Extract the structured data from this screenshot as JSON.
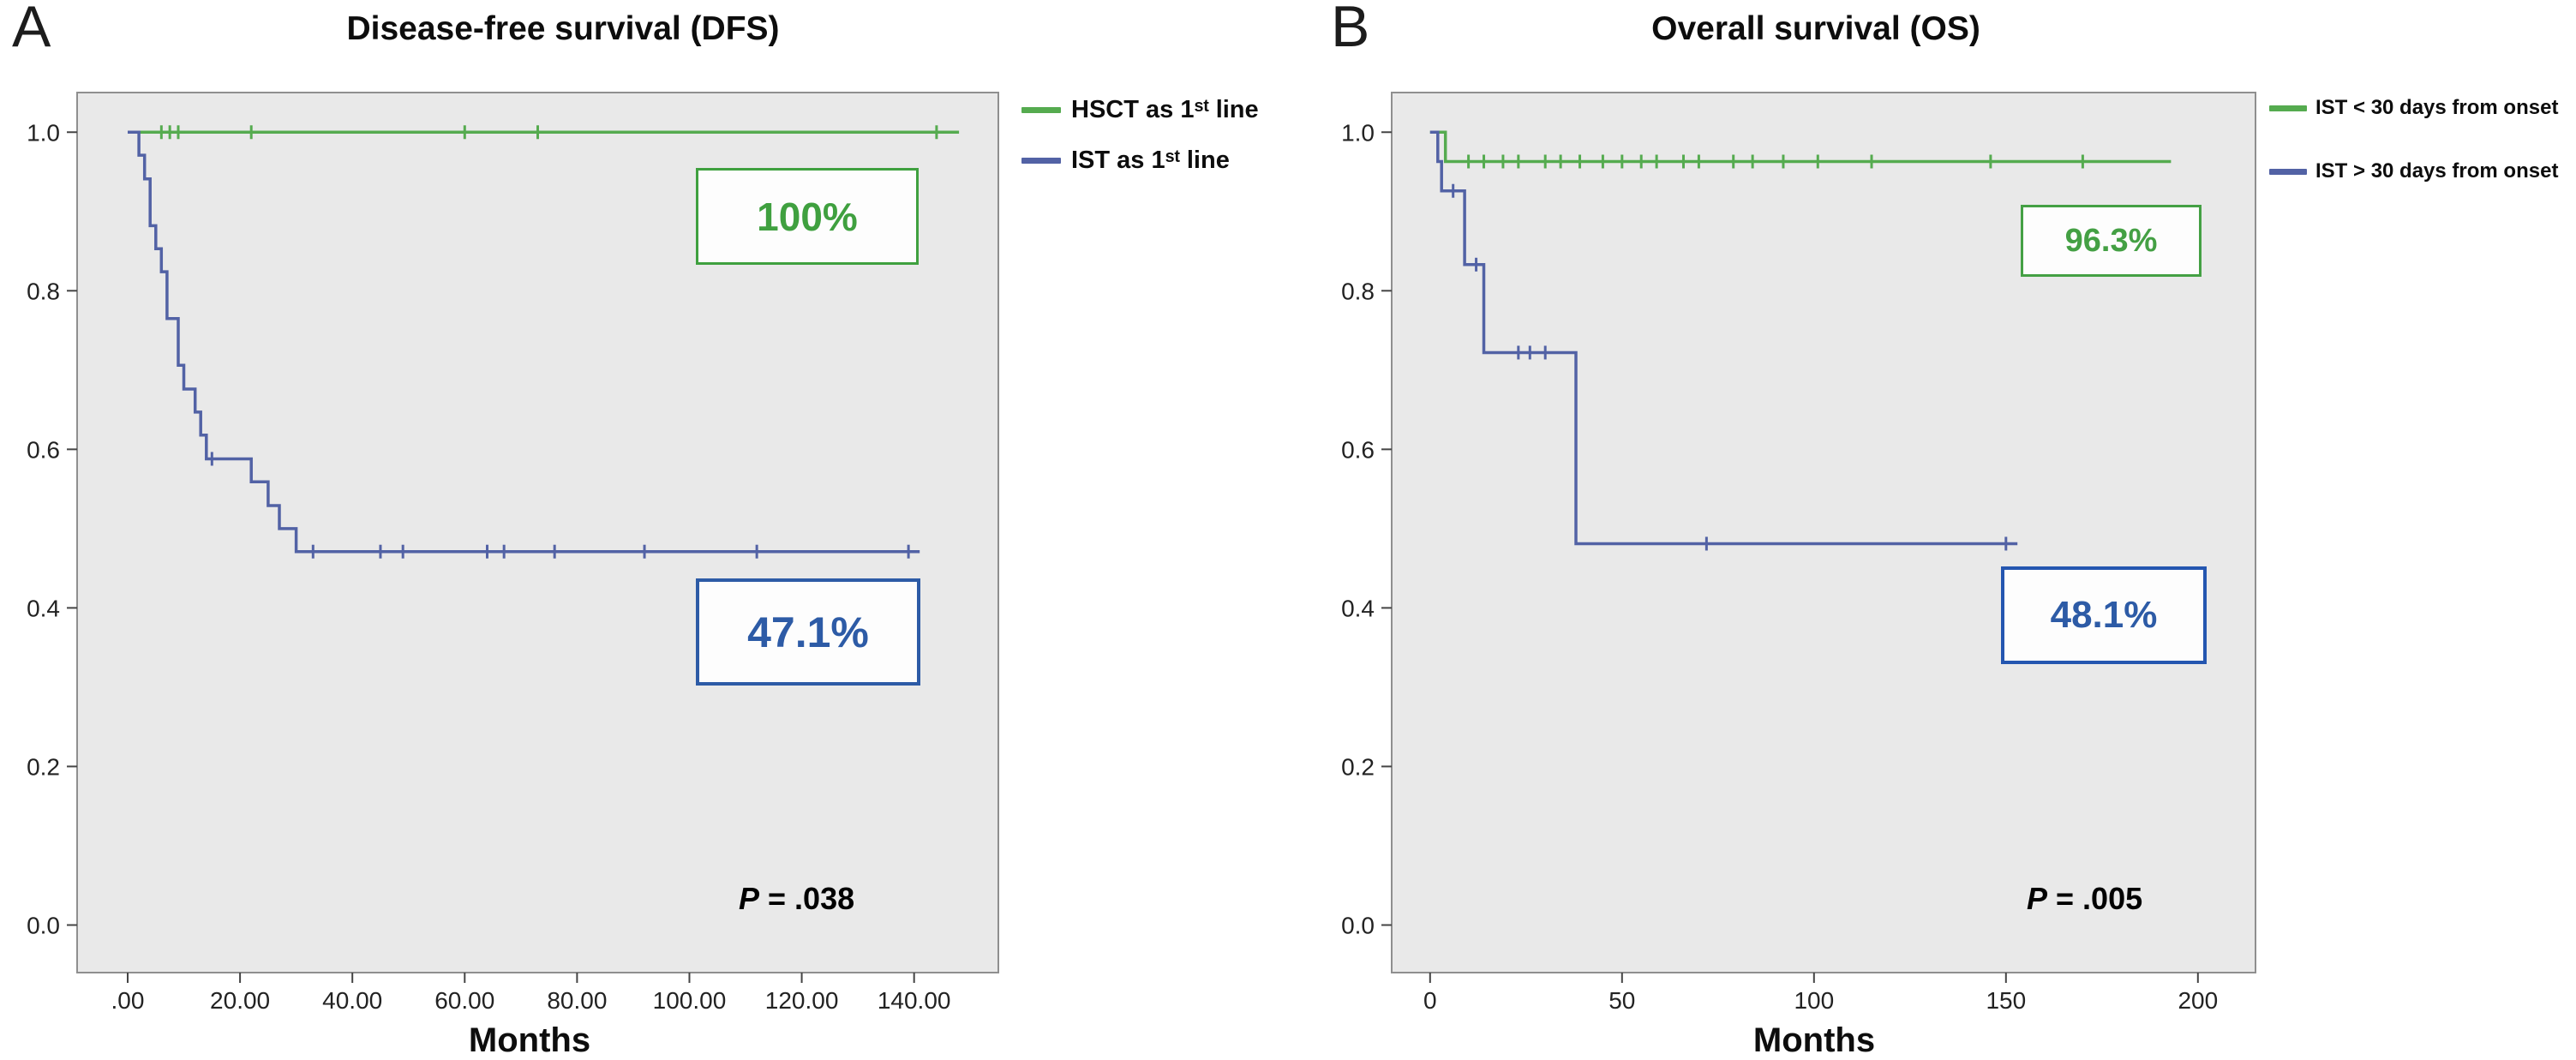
{
  "panels": [
    {
      "letter": "A",
      "title": "Disease-free survival (DFS)",
      "xlabel": "Months",
      "p_italic": "P",
      "p_rest": " = .038",
      "legend": [
        {
          "label": "HSCT as 1ˢᵗ line"
        },
        {
          "label": "IST as 1ˢᵗ line"
        }
      ],
      "annotations": [
        {
          "text": "100%",
          "color": "#3fa03f",
          "border": "#3fa03f"
        },
        {
          "text": "47.1%",
          "color": "#2d5ba6",
          "border": "#2d5ba6"
        }
      ]
    },
    {
      "letter": "B",
      "title": "Overall survival (OS)",
      "xlabel": "Months",
      "p_italic": "P",
      "p_rest": " = .005",
      "legend": [
        {
          "label": "IST < 30 days from onset"
        },
        {
          "label": "IST > 30 days from onset"
        }
      ],
      "annotations": [
        {
          "text": "96.3%",
          "color": "#44a044",
          "border": "#44a044"
        },
        {
          "text": "48.1%",
          "color": "#2d5ba6",
          "border": "#2456b0"
        }
      ]
    }
  ],
  "chart_data": [
    {
      "type": "line",
      "subtype": "kaplan-meier-step",
      "panel": "A",
      "title": "Disease-free survival (DFS)",
      "xlabel": "Months",
      "ylabel": "",
      "xlim": [
        -9,
        155
      ],
      "ylim": [
        -0.06,
        1.05
      ],
      "grid": false,
      "plot_background": "#e9e9e9",
      "legend_position": "top-right-outside",
      "p_value": "P = .038",
      "xticks": {
        "values": [
          0,
          20,
          40,
          60,
          80,
          100,
          120,
          140
        ],
        "labels": [
          ".00",
          "20.00",
          "40.00",
          "60.00",
          "80.00",
          "100.00",
          "120.00",
          "140.00"
        ]
      },
      "yticks": {
        "values": [
          0.0,
          0.2,
          0.4,
          0.6,
          0.8,
          1.0
        ],
        "labels": [
          "0.0",
          "0.2",
          "0.4",
          "0.6",
          "0.8",
          "1.0"
        ]
      },
      "series": [
        {
          "name": "HSCT as 1st line",
          "color": "#55ab4f",
          "final_value": "100%",
          "steps": [
            [
              0,
              1.0
            ],
            [
              148,
              1.0
            ]
          ],
          "censors": [
            [
              6,
              1.0
            ],
            [
              7.5,
              1.0
            ],
            [
              9,
              1.0
            ],
            [
              22,
              1.0
            ],
            [
              60,
              1.0
            ],
            [
              73,
              1.0
            ],
            [
              144,
              1.0
            ]
          ]
        },
        {
          "name": "IST as 1st line",
          "color": "#5262a5",
          "final_value": "47.1%",
          "steps": [
            [
              0,
              1.0
            ],
            [
              2,
              1.0
            ],
            [
              2,
              0.971
            ],
            [
              3,
              0.971
            ],
            [
              3,
              0.941
            ],
            [
              4,
              0.941
            ],
            [
              4,
              0.882
            ],
            [
              5,
              0.882
            ],
            [
              5,
              0.853
            ],
            [
              6,
              0.853
            ],
            [
              6,
              0.824
            ],
            [
              7,
              0.824
            ],
            [
              7,
              0.765
            ],
            [
              9,
              0.765
            ],
            [
              9,
              0.706
            ],
            [
              10,
              0.706
            ],
            [
              10,
              0.676
            ],
            [
              12,
              0.676
            ],
            [
              12,
              0.647
            ],
            [
              13,
              0.647
            ],
            [
              13,
              0.618
            ],
            [
              14,
              0.618
            ],
            [
              14,
              0.588
            ],
            [
              22,
              0.588
            ],
            [
              22,
              0.559
            ],
            [
              25,
              0.559
            ],
            [
              25,
              0.529
            ],
            [
              27,
              0.529
            ],
            [
              27,
              0.5
            ],
            [
              30,
              0.5
            ],
            [
              30,
              0.471
            ],
            [
              141,
              0.471
            ]
          ],
          "censors": [
            [
              15,
              0.588
            ],
            [
              33,
              0.471
            ],
            [
              45,
              0.471
            ],
            [
              49,
              0.471
            ],
            [
              64,
              0.471
            ],
            [
              67,
              0.471
            ],
            [
              76,
              0.471
            ],
            [
              92,
              0.471
            ],
            [
              112,
              0.471
            ],
            [
              139,
              0.471
            ]
          ]
        }
      ]
    },
    {
      "type": "line",
      "subtype": "kaplan-meier-step",
      "panel": "B",
      "title": "Overall survival (OS)",
      "xlabel": "Months",
      "ylabel": "",
      "xlim": [
        -10,
        215
      ],
      "ylim": [
        -0.06,
        1.05
      ],
      "grid": false,
      "plot_background": "#e9e9e9",
      "legend_position": "top-right-outside",
      "p_value": "P = .005",
      "xticks": {
        "values": [
          0,
          50,
          100,
          150,
          200
        ],
        "labels": [
          "0",
          "50",
          "100",
          "150",
          "200"
        ]
      },
      "yticks": {
        "values": [
          0.0,
          0.2,
          0.4,
          0.6,
          0.8,
          1.0
        ],
        "labels": [
          "0.0",
          "0.2",
          "0.4",
          "0.6",
          "0.8",
          "1.0"
        ]
      },
      "series": [
        {
          "name": "IST < 30 days from onset",
          "color": "#55ab4f",
          "final_value": "96.3%",
          "steps": [
            [
              0,
              1.0
            ],
            [
              4,
              1.0
            ],
            [
              4,
              0.963
            ],
            [
              193,
              0.963
            ]
          ],
          "censors": [
            [
              10,
              0.963
            ],
            [
              14,
              0.963
            ],
            [
              19,
              0.963
            ],
            [
              23,
              0.963
            ],
            [
              30,
              0.963
            ],
            [
              34,
              0.963
            ],
            [
              39,
              0.963
            ],
            [
              45,
              0.963
            ],
            [
              50,
              0.963
            ],
            [
              55,
              0.963
            ],
            [
              59,
              0.963
            ],
            [
              66,
              0.963
            ],
            [
              70,
              0.963
            ],
            [
              79,
              0.963
            ],
            [
              84,
              0.963
            ],
            [
              92,
              0.963
            ],
            [
              101,
              0.963
            ],
            [
              115,
              0.963
            ],
            [
              146,
              0.963
            ],
            [
              170,
              0.963
            ]
          ]
        },
        {
          "name": "IST > 30 days from onset",
          "color": "#5262a5",
          "final_value": "48.1%",
          "steps": [
            [
              0,
              1.0
            ],
            [
              2,
              1.0
            ],
            [
              2,
              0.963
            ],
            [
              3,
              0.963
            ],
            [
              3,
              0.926
            ],
            [
              9,
              0.926
            ],
            [
              9,
              0.833
            ],
            [
              14,
              0.833
            ],
            [
              14,
              0.722
            ],
            [
              38,
              0.722
            ],
            [
              38,
              0.481
            ],
            [
              153,
              0.481
            ]
          ],
          "censors": [
            [
              6,
              0.926
            ],
            [
              12,
              0.833
            ],
            [
              23,
              0.722
            ],
            [
              26,
              0.722
            ],
            [
              30,
              0.722
            ],
            [
              72,
              0.481
            ],
            [
              150,
              0.481
            ]
          ]
        }
      ]
    }
  ]
}
